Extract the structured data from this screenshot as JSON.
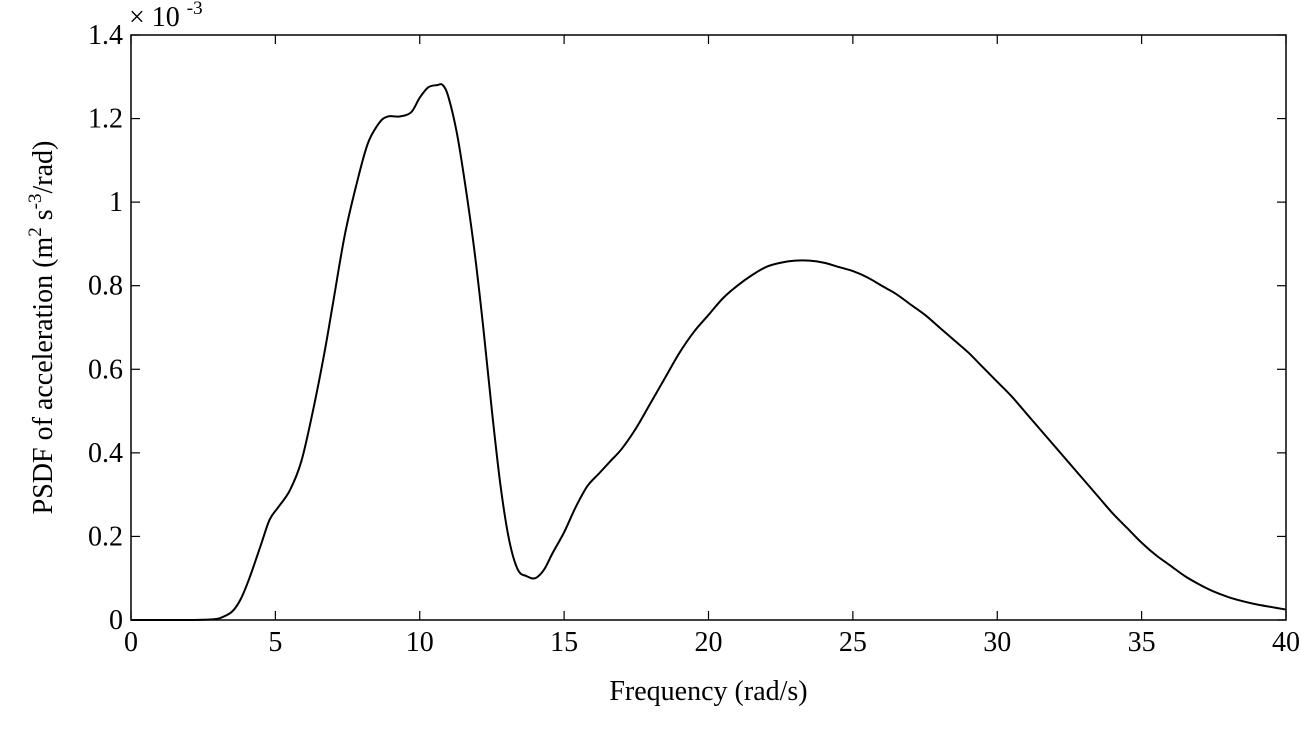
{
  "chart_data": {
    "type": "line",
    "title": "",
    "xlabel": "Frequency (rad/s)",
    "ylabel": {
      "prefix": "PSDF of acceleration (m",
      "sup1": "2",
      "mid": " s",
      "sup2": "-3",
      "suffix": "/rad)"
    },
    "y_multiplier": {
      "base": "× 10",
      "exponent": "-3"
    },
    "xlim": [
      0,
      40
    ],
    "ylim": [
      0,
      1.4
    ],
    "xticks": [
      0,
      5,
      10,
      15,
      20,
      25,
      30,
      35,
      40
    ],
    "xtick_labels": [
      "0",
      "5",
      "10",
      "15",
      "20",
      "25",
      "30",
      "35",
      "40"
    ],
    "yticks": [
      0,
      0.2,
      0.4,
      0.6,
      0.8,
      1.0,
      1.2,
      1.4
    ],
    "ytick_labels": [
      "0",
      "0.2",
      "0.4",
      "0.6",
      "0.8",
      "1",
      "1.2",
      "1.4"
    ],
    "grid": false,
    "line_color": "#000000",
    "series": [
      {
        "x": [
          0,
          1,
          2,
          2.8,
          3.1,
          3.5,
          3.8,
          4.1,
          4.5,
          4.8,
          5.1,
          5.5,
          5.9,
          6.3,
          6.7,
          7.0,
          7.4,
          7.8,
          8.2,
          8.6,
          8.9,
          9.3,
          9.7,
          10.0,
          10.3,
          10.6,
          10.8,
          11.0,
          11.3,
          11.6,
          11.9,
          12.2,
          12.5,
          12.8,
          13.1,
          13.4,
          13.7,
          14.0,
          14.3,
          14.6,
          15.0,
          15.4,
          15.8,
          16.2,
          16.6,
          17.0,
          17.5,
          18.0,
          18.5,
          19.0,
          19.5,
          20.0,
          20.5,
          21.0,
          21.5,
          22.0,
          22.5,
          23.0,
          23.5,
          24.0,
          24.5,
          25.0,
          25.5,
          26.0,
          26.5,
          27.0,
          27.5,
          28.0,
          28.5,
          29.0,
          29.5,
          30.0,
          30.5,
          31.0,
          31.5,
          32.0,
          32.5,
          33.0,
          33.5,
          34.0,
          34.5,
          35.0,
          35.5,
          36.0,
          36.5,
          37.0,
          37.5,
          38.0,
          38.5,
          39.0,
          39.5,
          40.0
        ],
        "y": [
          0.0,
          0.0,
          0.0,
          0.0015,
          0.005,
          0.02,
          0.05,
          0.1,
          0.18,
          0.24,
          0.27,
          0.31,
          0.38,
          0.5,
          0.64,
          0.76,
          0.92,
          1.04,
          1.14,
          1.19,
          1.205,
          1.205,
          1.215,
          1.25,
          1.275,
          1.28,
          1.28,
          1.25,
          1.16,
          1.03,
          0.88,
          0.7,
          0.5,
          0.32,
          0.19,
          0.12,
          0.105,
          0.1,
          0.12,
          0.16,
          0.21,
          0.27,
          0.32,
          0.35,
          0.38,
          0.41,
          0.46,
          0.52,
          0.58,
          0.64,
          0.69,
          0.73,
          0.77,
          0.8,
          0.825,
          0.845,
          0.855,
          0.86,
          0.86,
          0.855,
          0.845,
          0.835,
          0.82,
          0.8,
          0.78,
          0.755,
          0.73,
          0.7,
          0.67,
          0.64,
          0.605,
          0.57,
          0.535,
          0.495,
          0.455,
          0.415,
          0.375,
          0.335,
          0.295,
          0.255,
          0.22,
          0.185,
          0.155,
          0.13,
          0.105,
          0.085,
          0.068,
          0.055,
          0.045,
          0.037,
          0.031,
          0.025
        ]
      }
    ]
  }
}
